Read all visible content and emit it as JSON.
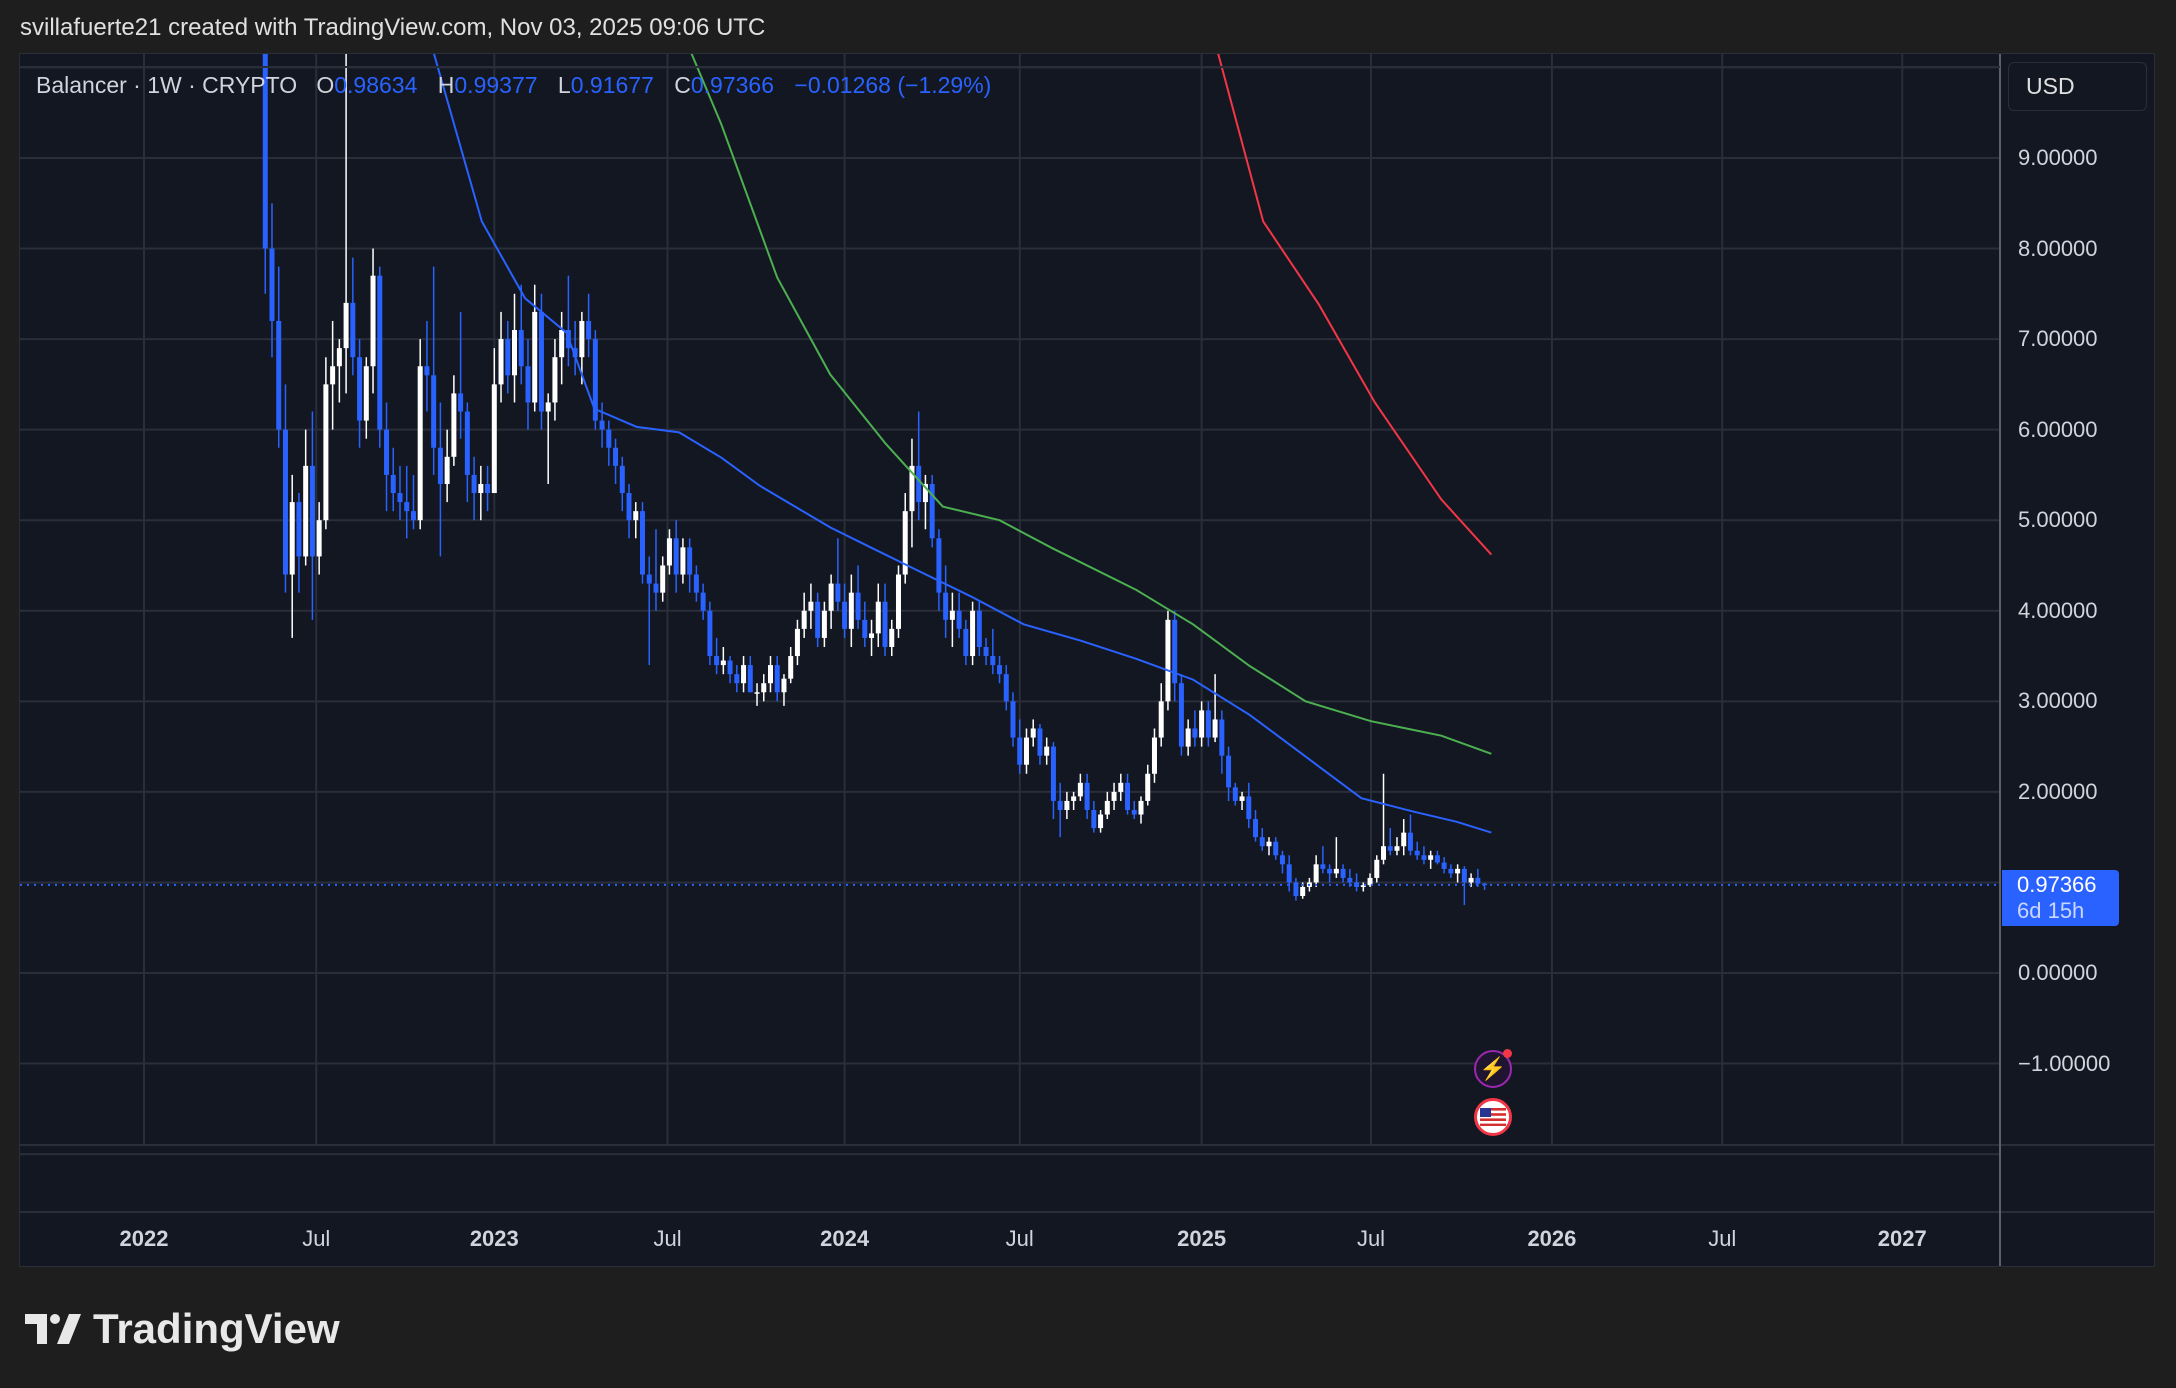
{
  "credit": "svillafuerte21 created with TradingView.com, Nov 03, 2025 09:06 UTC",
  "legend": {
    "symbol": "Balancer · 1W · CRYPTO",
    "o_label": "O",
    "open": "0.98634",
    "h_label": "H",
    "high": "0.99377",
    "l_label": "L",
    "low": "0.91677",
    "c_label": "C",
    "close": "0.97366",
    "change": "−0.01268 (−1.29%)"
  },
  "currency_button": "USD",
  "last_price_badge": {
    "price": "0.97366",
    "countdown": "6d 15h"
  },
  "brand": "TradingView",
  "event_icons": [
    "lightning-icon",
    "us-flag-icon"
  ],
  "colors": {
    "up": "#ffffff",
    "down": "#2962ff",
    "ma_blue": "#2962ff",
    "ma_green": "#4caf50",
    "ma_red": "#f23645",
    "background": "#131722",
    "grid": "#2a2e39"
  },
  "chart_data": {
    "type": "candlestick",
    "interval": "1W",
    "start_date": "2022-05-09",
    "y_ticks": [
      "9.00000",
      "8.00000",
      "7.00000",
      "6.00000",
      "5.00000",
      "4.00000",
      "3.00000",
      "2.00000",
      "0.00000",
      "−1.00000"
    ],
    "y_tick_values": [
      9,
      8,
      7,
      6,
      5,
      4,
      3,
      2,
      0,
      -1
    ],
    "ylim": [
      -2.0,
      10.2
    ],
    "grid": true,
    "x_ticks": [
      {
        "label": "2022",
        "date": "2022-01-03",
        "year": true
      },
      {
        "label": "Jul",
        "date": "2022-07-01",
        "year": false
      },
      {
        "label": "2023",
        "date": "2023-01-02",
        "year": true
      },
      {
        "label": "Jul",
        "date": "2023-07-01",
        "year": false
      },
      {
        "label": "2024",
        "date": "2024-01-01",
        "year": true
      },
      {
        "label": "Jul",
        "date": "2024-07-01",
        "year": false
      },
      {
        "label": "2025",
        "date": "2025-01-06",
        "year": true
      },
      {
        "label": "Jul",
        "date": "2025-07-01",
        "year": false
      },
      {
        "label": "2026",
        "date": "2026-01-05",
        "year": true
      },
      {
        "label": "Jul",
        "date": "2026-07-01",
        "year": false
      },
      {
        "label": "2027",
        "date": "2027-01-04",
        "year": true
      }
    ],
    "ohlc": [
      [
        10.5,
        11,
        7.5,
        8.0
      ],
      [
        8.0,
        8.5,
        6.8,
        7.2
      ],
      [
        7.2,
        7.8,
        5.8,
        6.0
      ],
      [
        6.0,
        6.5,
        4.2,
        4.4
      ],
      [
        4.4,
        5.5,
        3.7,
        5.2
      ],
      [
        5.2,
        5.3,
        4.2,
        4.6
      ],
      [
        4.6,
        6.0,
        4.5,
        5.6
      ],
      [
        5.6,
        6.2,
        3.9,
        4.6
      ],
      [
        4.6,
        5.2,
        4.4,
        5.0
      ],
      [
        5.0,
        6.8,
        4.9,
        6.5
      ],
      [
        6.5,
        7.2,
        6.0,
        6.7
      ],
      [
        6.7,
        7.0,
        6.3,
        6.9
      ],
      [
        6.9,
        10.5,
        6.4,
        7.4
      ],
      [
        7.4,
        7.9,
        6.6,
        6.8
      ],
      [
        6.8,
        7.0,
        5.8,
        6.1
      ],
      [
        6.1,
        6.8,
        5.9,
        6.7
      ],
      [
        6.7,
        8.0,
        6.4,
        7.7
      ],
      [
        7.7,
        7.8,
        5.8,
        6.0
      ],
      [
        6.0,
        6.3,
        5.1,
        5.5
      ],
      [
        5.5,
        5.8,
        5.1,
        5.3
      ],
      [
        5.3,
        5.6,
        5.0,
        5.2
      ],
      [
        5.2,
        5.6,
        4.8,
        5.1
      ],
      [
        5.1,
        5.5,
        4.9,
        5.0
      ],
      [
        5.0,
        7.0,
        4.9,
        6.7
      ],
      [
        6.7,
        7.2,
        6.2,
        6.6
      ],
      [
        6.6,
        7.8,
        5.5,
        5.8
      ],
      [
        5.8,
        6.3,
        4.6,
        5.4
      ],
      [
        5.4,
        6.0,
        5.2,
        5.7
      ],
      [
        5.7,
        6.6,
        5.6,
        6.4
      ],
      [
        6.4,
        7.3,
        5.9,
        6.2
      ],
      [
        6.2,
        6.3,
        5.2,
        5.5
      ],
      [
        5.5,
        5.7,
        5.0,
        5.3
      ],
      [
        5.3,
        5.6,
        5.0,
        5.4
      ],
      [
        5.4,
        5.6,
        5.1,
        5.3
      ],
      [
        5.3,
        6.9,
        5.3,
        6.5
      ],
      [
        6.5,
        7.3,
        6.3,
        7.0
      ],
      [
        7.0,
        7.2,
        6.4,
        6.6
      ],
      [
        6.6,
        7.5,
        6.3,
        7.1
      ],
      [
        7.1,
        7.6,
        6.5,
        6.7
      ],
      [
        6.7,
        7.0,
        6.0,
        6.3
      ],
      [
        6.3,
        7.6,
        6.2,
        7.3
      ],
      [
        7.3,
        7.5,
        6.0,
        6.2
      ],
      [
        6.2,
        6.4,
        5.4,
        6.3
      ],
      [
        6.3,
        7.0,
        6.1,
        6.8
      ],
      [
        6.8,
        7.3,
        6.5,
        7.1
      ],
      [
        7.1,
        7.7,
        6.7,
        6.9
      ],
      [
        6.9,
        7.2,
        6.6,
        6.8
      ],
      [
        6.8,
        7.3,
        6.5,
        7.2
      ],
      [
        7.2,
        7.5,
        6.8,
        7.0
      ],
      [
        7.0,
        7.1,
        6.0,
        6.1
      ],
      [
        6.1,
        6.3,
        5.8,
        6.0
      ],
      [
        6.0,
        6.1,
        5.6,
        5.8
      ],
      [
        5.8,
        5.9,
        5.4,
        5.6
      ],
      [
        5.6,
        5.7,
        5.1,
        5.3
      ],
      [
        5.3,
        5.4,
        4.8,
        5.0
      ],
      [
        5.0,
        5.2,
        4.8,
        5.1
      ],
      [
        5.1,
        5.2,
        4.3,
        4.4
      ],
      [
        4.4,
        4.6,
        3.4,
        4.3
      ],
      [
        4.3,
        4.9,
        4.0,
        4.2
      ],
      [
        4.2,
        4.6,
        4.1,
        4.5
      ],
      [
        4.5,
        4.9,
        4.4,
        4.8
      ],
      [
        4.8,
        5.0,
        4.2,
        4.4
      ],
      [
        4.4,
        4.8,
        4.3,
        4.7
      ],
      [
        4.7,
        4.8,
        4.2,
        4.4
      ],
      [
        4.4,
        4.5,
        4.1,
        4.2
      ],
      [
        4.2,
        4.3,
        3.9,
        4.0
      ],
      [
        4.0,
        4.1,
        3.4,
        3.5
      ],
      [
        3.5,
        3.7,
        3.3,
        3.4
      ],
      [
        3.4,
        3.6,
        3.3,
        3.45
      ],
      [
        3.45,
        3.5,
        3.2,
        3.3
      ],
      [
        3.3,
        3.4,
        3.1,
        3.2
      ],
      [
        3.2,
        3.5,
        3.1,
        3.4
      ],
      [
        3.4,
        3.5,
        3.1,
        3.1
      ],
      [
        3.1,
        3.2,
        2.95,
        3.1
      ],
      [
        3.1,
        3.3,
        3.0,
        3.2
      ],
      [
        3.2,
        3.5,
        3.1,
        3.4
      ],
      [
        3.4,
        3.5,
        3.0,
        3.1
      ],
      [
        3.1,
        3.3,
        2.95,
        3.25
      ],
      [
        3.25,
        3.6,
        3.2,
        3.5
      ],
      [
        3.5,
        3.9,
        3.4,
        3.8
      ],
      [
        3.8,
        4.2,
        3.7,
        4.0
      ],
      [
        4.0,
        4.3,
        3.8,
        4.1
      ],
      [
        4.1,
        4.2,
        3.6,
        3.7
      ],
      [
        3.7,
        4.1,
        3.6,
        4.0
      ],
      [
        4.0,
        4.4,
        3.8,
        4.3
      ],
      [
        4.3,
        4.8,
        4.0,
        4.1
      ],
      [
        4.1,
        4.3,
        3.7,
        3.8
      ],
      [
        3.8,
        4.4,
        3.6,
        4.2
      ],
      [
        4.2,
        4.5,
        3.8,
        3.9
      ],
      [
        3.9,
        4.1,
        3.6,
        3.7
      ],
      [
        3.7,
        3.9,
        3.5,
        3.75
      ],
      [
        3.75,
        4.3,
        3.6,
        4.1
      ],
      [
        4.1,
        4.3,
        3.5,
        3.6
      ],
      [
        3.6,
        3.9,
        3.5,
        3.8
      ],
      [
        3.8,
        4.5,
        3.7,
        4.4
      ],
      [
        4.4,
        5.3,
        4.3,
        5.1
      ],
      [
        5.1,
        5.9,
        4.7,
        5.6
      ],
      [
        5.6,
        6.2,
        5.0,
        5.2
      ],
      [
        5.2,
        5.5,
        4.9,
        5.4
      ],
      [
        5.4,
        5.5,
        4.7,
        4.8
      ],
      [
        4.8,
        4.9,
        4.0,
        4.2
      ],
      [
        4.2,
        4.5,
        3.7,
        3.9
      ],
      [
        3.9,
        4.2,
        3.6,
        4.0
      ],
      [
        4.0,
        4.2,
        3.7,
        3.8
      ],
      [
        3.8,
        3.9,
        3.4,
        3.5
      ],
      [
        3.5,
        4.1,
        3.4,
        4.0
      ],
      [
        4.0,
        4.1,
        3.5,
        3.6
      ],
      [
        3.6,
        3.7,
        3.4,
        3.5
      ],
      [
        3.5,
        3.8,
        3.3,
        3.4
      ],
      [
        3.4,
        3.5,
        3.2,
        3.3
      ],
      [
        3.3,
        3.4,
        2.9,
        3.0
      ],
      [
        3.0,
        3.1,
        2.5,
        2.6
      ],
      [
        2.6,
        2.8,
        2.2,
        2.3
      ],
      [
        2.3,
        2.7,
        2.2,
        2.6
      ],
      [
        2.6,
        2.8,
        2.5,
        2.7
      ],
      [
        2.7,
        2.75,
        2.3,
        2.4
      ],
      [
        2.4,
        2.6,
        2.3,
        2.5
      ],
      [
        2.5,
        2.55,
        1.7,
        1.9
      ],
      [
        1.9,
        2.1,
        1.5,
        1.8
      ],
      [
        1.8,
        2.0,
        1.7,
        1.9
      ],
      [
        1.9,
        2.0,
        1.8,
        1.95
      ],
      [
        1.95,
        2.2,
        1.9,
        2.1
      ],
      [
        2.1,
        2.2,
        1.7,
        1.8
      ],
      [
        1.8,
        1.9,
        1.55,
        1.6
      ],
      [
        1.6,
        1.8,
        1.55,
        1.75
      ],
      [
        1.75,
        2.0,
        1.7,
        1.9
      ],
      [
        1.9,
        2.1,
        1.8,
        2.0
      ],
      [
        2.0,
        2.2,
        1.9,
        2.1
      ],
      [
        2.1,
        2.2,
        1.75,
        1.8
      ],
      [
        1.8,
        1.9,
        1.7,
        1.75
      ],
      [
        1.75,
        1.95,
        1.65,
        1.9
      ],
      [
        1.9,
        2.3,
        1.85,
        2.2
      ],
      [
        2.2,
        2.7,
        2.1,
        2.6
      ],
      [
        2.6,
        3.2,
        2.5,
        3.0
      ],
      [
        3.0,
        4.0,
        2.9,
        3.9
      ],
      [
        3.9,
        4.0,
        3.0,
        3.2
      ],
      [
        3.2,
        3.3,
        2.4,
        2.5
      ],
      [
        2.5,
        2.8,
        2.4,
        2.7
      ],
      [
        2.7,
        2.9,
        2.5,
        2.6
      ],
      [
        2.6,
        3.0,
        2.5,
        2.9
      ],
      [
        2.9,
        3.0,
        2.5,
        2.6
      ],
      [
        2.6,
        3.3,
        2.55,
        2.8
      ],
      [
        2.8,
        2.9,
        2.2,
        2.4
      ],
      [
        2.4,
        2.5,
        1.9,
        2.05
      ],
      [
        2.05,
        2.1,
        1.85,
        1.9
      ],
      [
        1.9,
        2.0,
        1.8,
        1.95
      ],
      [
        1.95,
        2.1,
        1.6,
        1.7
      ],
      [
        1.7,
        1.8,
        1.45,
        1.5
      ],
      [
        1.5,
        1.6,
        1.35,
        1.4
      ],
      [
        1.4,
        1.5,
        1.3,
        1.45
      ],
      [
        1.45,
        1.5,
        1.25,
        1.3
      ],
      [
        1.3,
        1.35,
        1.1,
        1.2
      ],
      [
        1.2,
        1.3,
        0.9,
        1.0
      ],
      [
        1.0,
        1.05,
        0.8,
        0.85
      ],
      [
        0.85,
        1.0,
        0.82,
        0.95
      ],
      [
        0.95,
        1.05,
        0.9,
        1.0
      ],
      [
        1.0,
        1.3,
        0.95,
        1.2
      ],
      [
        1.2,
        1.4,
        1.1,
        1.15
      ],
      [
        1.15,
        1.2,
        1.0,
        1.1
      ],
      [
        1.1,
        1.5,
        1.05,
        1.15
      ],
      [
        1.15,
        1.2,
        1.0,
        1.05
      ],
      [
        1.05,
        1.15,
        0.95,
        1.0
      ],
      [
        1.0,
        1.1,
        0.9,
        0.95
      ],
      [
        0.95,
        1.0,
        0.9,
        0.97
      ],
      [
        0.97,
        1.1,
        0.95,
        1.05
      ],
      [
        1.05,
        1.3,
        1.0,
        1.25
      ],
      [
        1.25,
        2.2,
        1.2,
        1.4
      ],
      [
        1.4,
        1.6,
        1.3,
        1.35
      ],
      [
        1.35,
        1.5,
        1.3,
        1.4
      ],
      [
        1.4,
        1.7,
        1.3,
        1.55
      ],
      [
        1.55,
        1.75,
        1.3,
        1.35
      ],
      [
        1.35,
        1.45,
        1.25,
        1.3
      ],
      [
        1.3,
        1.4,
        1.2,
        1.25
      ],
      [
        1.25,
        1.35,
        1.15,
        1.3
      ],
      [
        1.3,
        1.35,
        1.2,
        1.22
      ],
      [
        1.22,
        1.28,
        1.1,
        1.15
      ],
      [
        1.15,
        1.2,
        1.05,
        1.1
      ],
      [
        1.1,
        1.2,
        1.0,
        1.15
      ],
      [
        1.15,
        1.18,
        0.75,
        1.0
      ],
      [
        1.0,
        1.1,
        0.95,
        1.05
      ],
      [
        1.05,
        1.15,
        0.95,
        0.98634
      ],
      [
        0.98634,
        0.99377,
        0.91677,
        0.97366
      ]
    ],
    "moving_averages": [
      {
        "color": "#2962ff",
        "points": [
          [
            "2022-10-30",
            10.2
          ],
          [
            "2022-12-20",
            8.3
          ],
          [
            "2023-02-03",
            7.45
          ],
          [
            "2023-03-18",
            7.07
          ],
          [
            "2023-04-16",
            6.23
          ],
          [
            "2023-05-30",
            6.03
          ],
          [
            "2023-07-13",
            5.97
          ],
          [
            "2023-08-26",
            5.69
          ],
          [
            "2023-10-05",
            5.38
          ],
          [
            "2023-12-17",
            4.92
          ],
          [
            "2024-01-30",
            4.69
          ],
          [
            "2024-03-14",
            4.46
          ],
          [
            "2024-05-11",
            4.16
          ],
          [
            "2024-07-05",
            3.85
          ],
          [
            "2024-09-02",
            3.67
          ],
          [
            "2024-10-30",
            3.47
          ],
          [
            "2024-12-28",
            3.24
          ],
          [
            "2025-02-25",
            2.85
          ],
          [
            "2025-04-24",
            2.39
          ],
          [
            "2025-06-21",
            1.93
          ],
          [
            "2025-08-15",
            1.78
          ],
          [
            "2025-09-28",
            1.67
          ],
          [
            "2025-11-03",
            1.55
          ]
        ]
      },
      {
        "color": "#4caf50",
        "points": [
          [
            "2023-07-24",
            10.2
          ],
          [
            "2023-08-26",
            9.37
          ],
          [
            "2023-10-23",
            7.68
          ],
          [
            "2023-12-17",
            6.61
          ],
          [
            "2024-02-13",
            5.84
          ],
          [
            "2024-04-12",
            5.15
          ],
          [
            "2024-06-10",
            5.0
          ],
          [
            "2024-08-04",
            4.69
          ],
          [
            "2024-10-30",
            4.23
          ],
          [
            "2024-12-28",
            3.85
          ],
          [
            "2025-02-25",
            3.39
          ],
          [
            "2025-04-24",
            3.0
          ],
          [
            "2025-07-01",
            2.78
          ],
          [
            "2025-09-12",
            2.62
          ],
          [
            "2025-11-03",
            2.42
          ]
        ]
      },
      {
        "color": "#f23645",
        "points": [
          [
            "2025-01-22",
            10.2
          ],
          [
            "2025-03-11",
            8.3
          ],
          [
            "2025-05-08",
            7.38
          ],
          [
            "2025-07-05",
            6.3
          ],
          [
            "2025-09-12",
            5.23
          ],
          [
            "2025-11-03",
            4.62
          ]
        ]
      }
    ],
    "last_price": 0.97366
  }
}
